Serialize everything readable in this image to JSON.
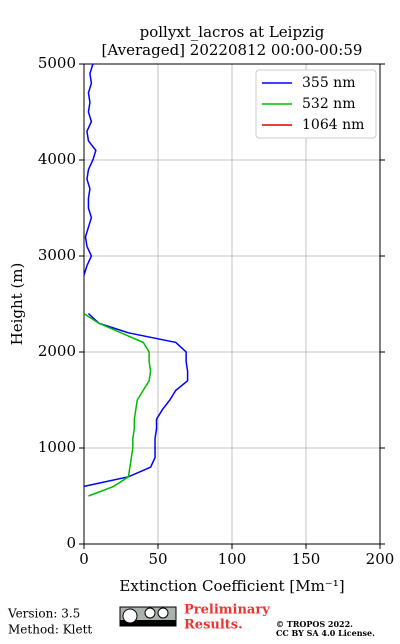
{
  "chart_data": {
    "type": "line",
    "title": "pollyxt_lacros at Leipzig",
    "subtitle": "[Averaged] 20220812 00:00-00:59",
    "xlabel": "Extinction Coefficient [Mm⁻¹]",
    "ylabel": "Height (m)",
    "y": [
      0,
      100,
      200,
      300,
      400,
      500,
      600,
      700,
      800,
      900,
      1000,
      1100,
      1200,
      1300,
      1400,
      1500,
      1600,
      1700,
      1800,
      1900,
      2000,
      2100,
      2200,
      2300,
      2400,
      2500,
      2600,
      2700,
      2800,
      2900,
      3000,
      3100,
      3200,
      3300,
      3400,
      3500,
      3600,
      3700,
      3800,
      3900,
      4000,
      4100,
      4200,
      4300,
      4400,
      4500,
      4600,
      4700,
      4800,
      4900,
      5000
    ],
    "series": [
      {
        "name": "355 nm",
        "color": "#0000ff",
        "values": [
          null,
          null,
          null,
          null,
          null,
          null,
          0,
          30,
          45,
          48,
          48,
          48,
          49,
          49,
          53,
          58,
          62,
          70,
          70,
          69,
          69,
          62,
          30,
          10,
          3,
          null,
          null,
          null,
          0,
          2,
          5,
          2,
          1,
          3,
          5,
          3,
          3,
          4,
          2,
          3,
          6,
          8,
          3,
          2,
          5,
          3,
          4,
          3,
          5,
          4,
          6
        ]
      },
      {
        "name": "532 nm",
        "color": "#00bb00",
        "values": [
          null,
          null,
          null,
          null,
          null,
          3,
          20,
          30,
          31,
          32,
          33,
          33,
          34,
          34,
          35,
          36,
          40,
          44,
          45,
          44,
          44,
          40,
          25,
          10,
          0,
          null,
          null,
          null,
          null,
          null,
          null,
          null,
          null,
          null,
          null,
          null,
          null,
          null,
          null,
          null,
          null,
          null,
          null,
          null,
          null,
          null,
          null,
          null,
          null,
          null,
          null
        ]
      },
      {
        "name": "1064 nm",
        "color": "#dd0000",
        "values": [
          null,
          null,
          null,
          null,
          null,
          null,
          null,
          null,
          null,
          null,
          null,
          null,
          null,
          null,
          null,
          null,
          null,
          null,
          null,
          null,
          null,
          null,
          null,
          null,
          null,
          null,
          null,
          null,
          null,
          null,
          null,
          null,
          null,
          null,
          null,
          null,
          null,
          null,
          null,
          null,
          null,
          null,
          null,
          null,
          null,
          null,
          null,
          null,
          null,
          null,
          null
        ]
      }
    ],
    "xlim": [
      0,
      200
    ],
    "xticks": [
      0,
      50,
      100,
      150,
      200
    ],
    "ylim": [
      0,
      5000
    ],
    "yticks": [
      0,
      1000,
      2000,
      3000,
      4000,
      5000
    ],
    "grid": true,
    "legend": "upper right"
  },
  "footer": {
    "version": "Version: 3.5",
    "method": "Method: Klett",
    "preliminary": [
      "Preliminary",
      "Results."
    ],
    "copyright": [
      "© TROPOS 2022.",
      "CC BY SA 4.0 License."
    ]
  }
}
